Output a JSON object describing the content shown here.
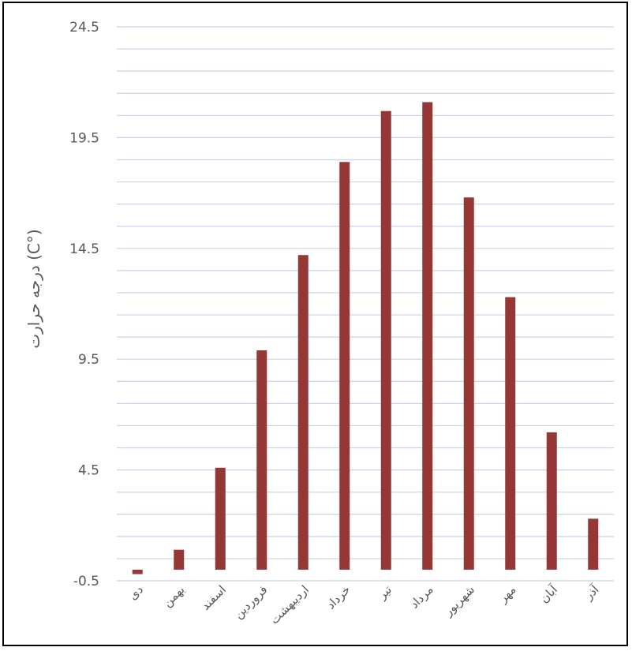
{
  "chart_data": {
    "type": "bar",
    "categories": [
      "دی",
      "بهمن",
      "اسفند",
      "فروردین",
      "اردیبهشت",
      "خرداد",
      "تیر",
      "مرداد",
      "شهریور",
      "مهر",
      "آبان",
      "آذر"
    ],
    "values": [
      -0.2,
      0.9,
      4.6,
      9.9,
      14.2,
      18.4,
      20.7,
      21.1,
      16.8,
      12.3,
      6.2,
      2.3
    ],
    "ylabel": "درجه حرارت (C°)",
    "ylim": [
      -0.5,
      24.5
    ],
    "yticks": [
      "24.5",
      "19.5",
      "14.5",
      "9.5",
      "4.5",
      "-0.5"
    ],
    "grid": true,
    "bar_color": "#953735",
    "grid_color": "#c6d3e8"
  }
}
